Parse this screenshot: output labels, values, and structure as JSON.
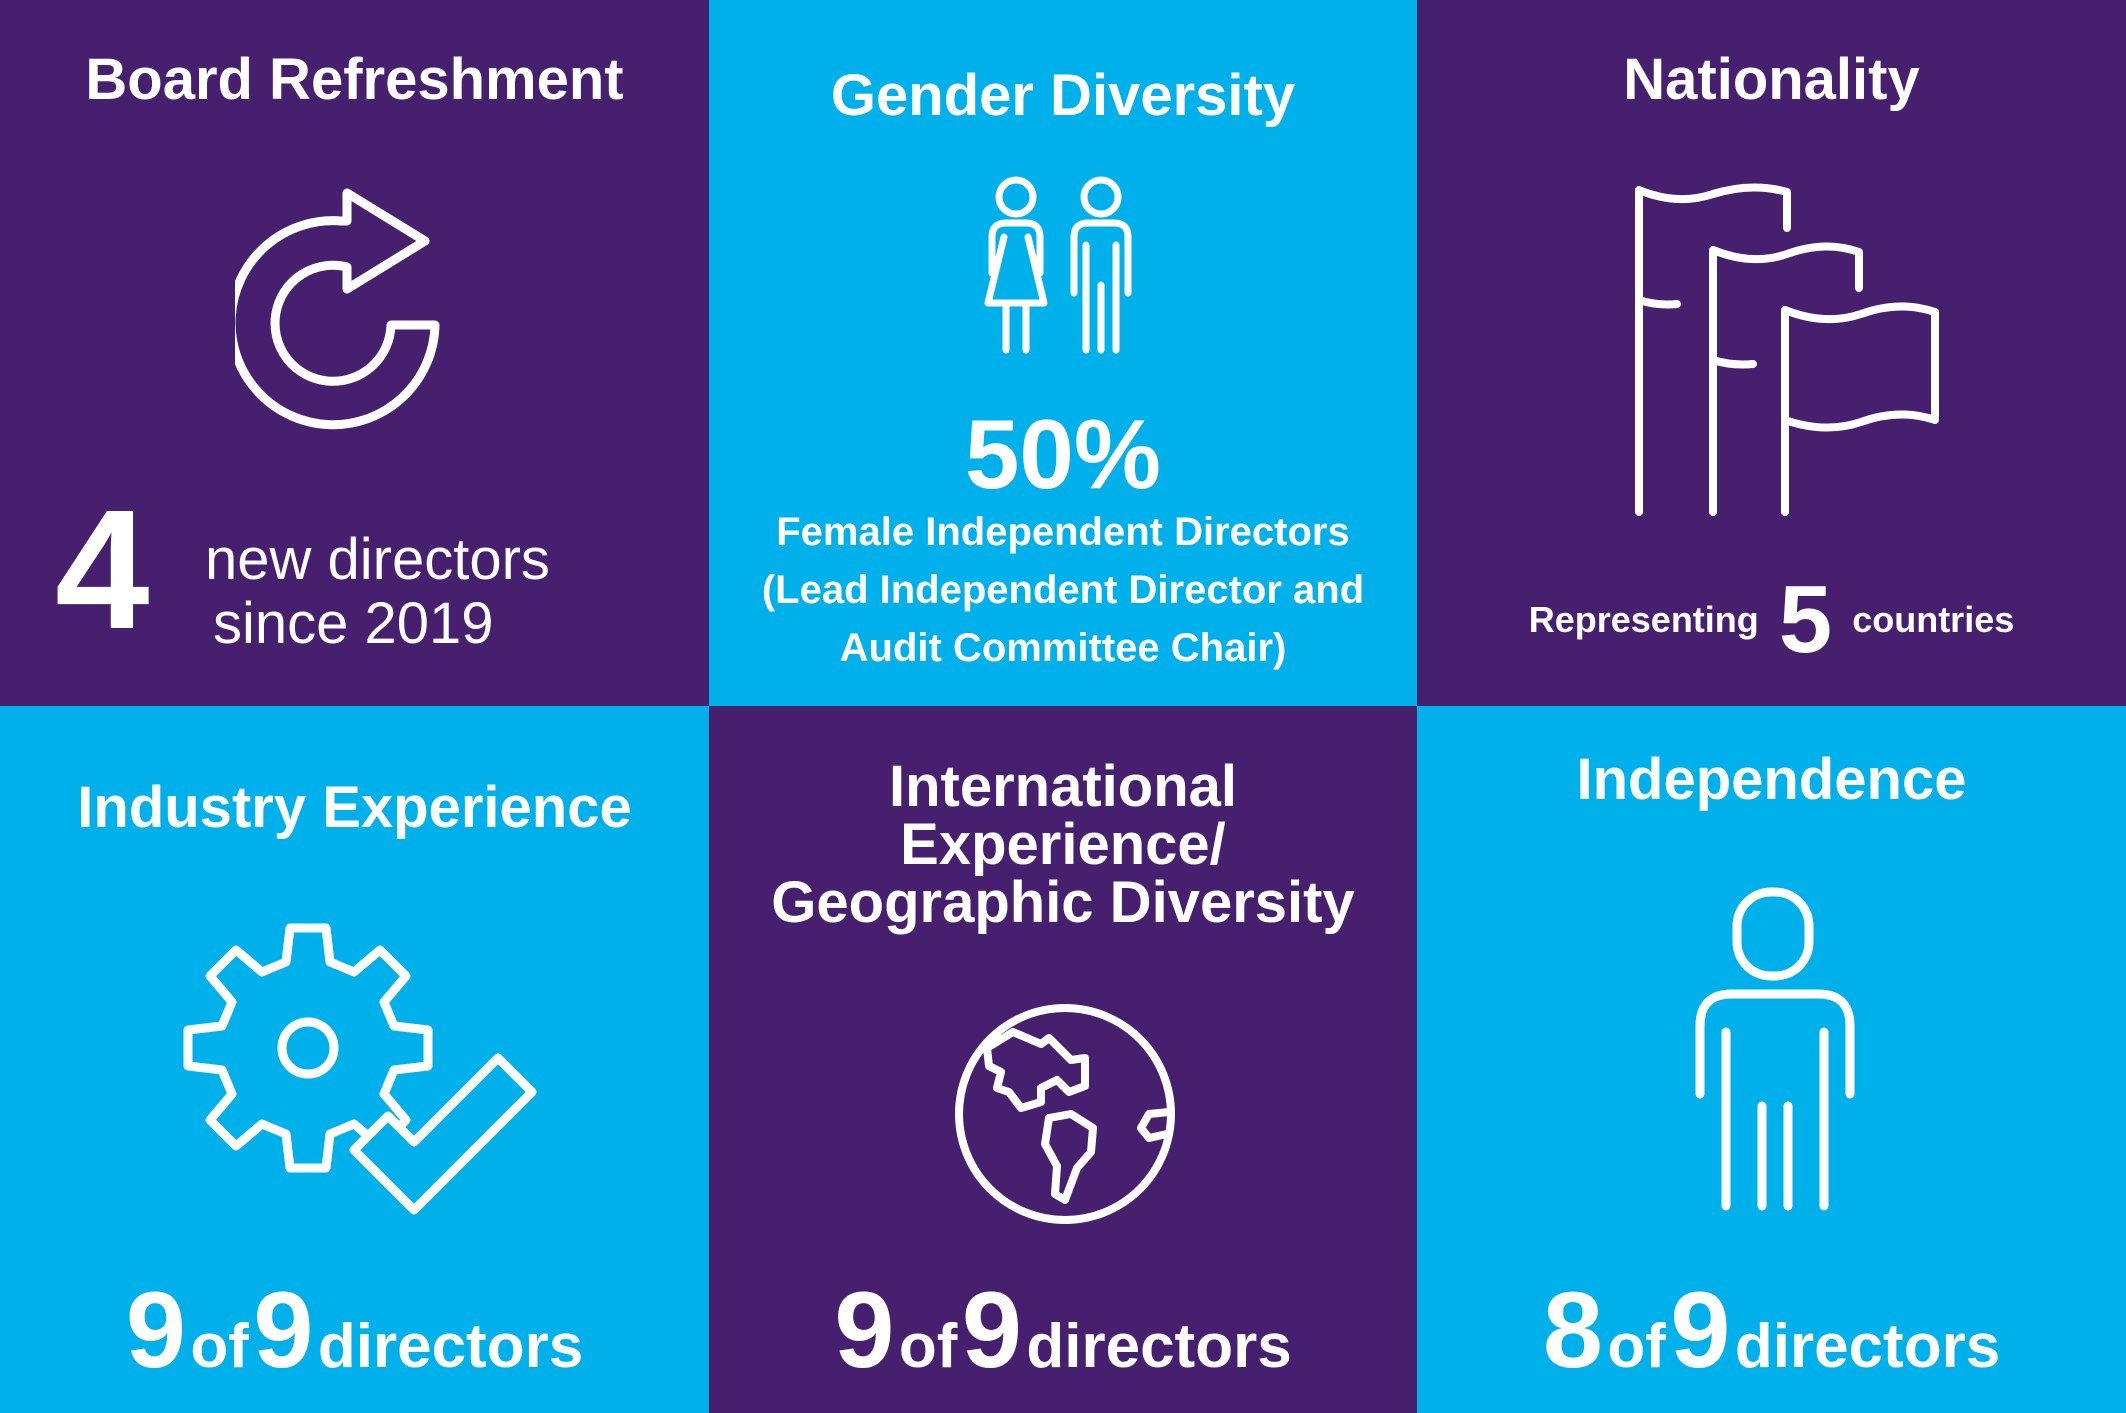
{
  "colors": {
    "purple": "#46206e",
    "blue": "#00b0eb",
    "white": "#ffffff"
  },
  "tiles": {
    "board_refreshment": {
      "title": "Board Refreshment",
      "icon": "refresh-arrow-icon",
      "number": "4",
      "line1": "new directors",
      "line2": "since 2019"
    },
    "gender_diversity": {
      "title": "Gender Diversity",
      "icon": "female-male-people-icon",
      "percent": "50%",
      "line1": "Female Independent Directors",
      "line2": "(Lead Independent Director and",
      "line3": "Audit Committee Chair)"
    },
    "nationality": {
      "title": "Nationality",
      "icon": "flags-icon",
      "prefix": "Representing",
      "number": "5",
      "suffix": "countries"
    },
    "industry_experience": {
      "title": "Industry Experience",
      "icon": "gear-check-icon",
      "count": "9",
      "of": "of",
      "total": "9",
      "unit": "directors"
    },
    "international_experience": {
      "title_line1": "International",
      "title_line2": "Experience/",
      "title_line3": "Geographic Diversity",
      "icon": "globe-icon",
      "count": "9",
      "of": "of",
      "total": "9",
      "unit": "directors"
    },
    "independence": {
      "title": "Independence",
      "icon": "person-icon",
      "count": "8",
      "of": "of",
      "total": "9",
      "unit": "directors"
    }
  }
}
